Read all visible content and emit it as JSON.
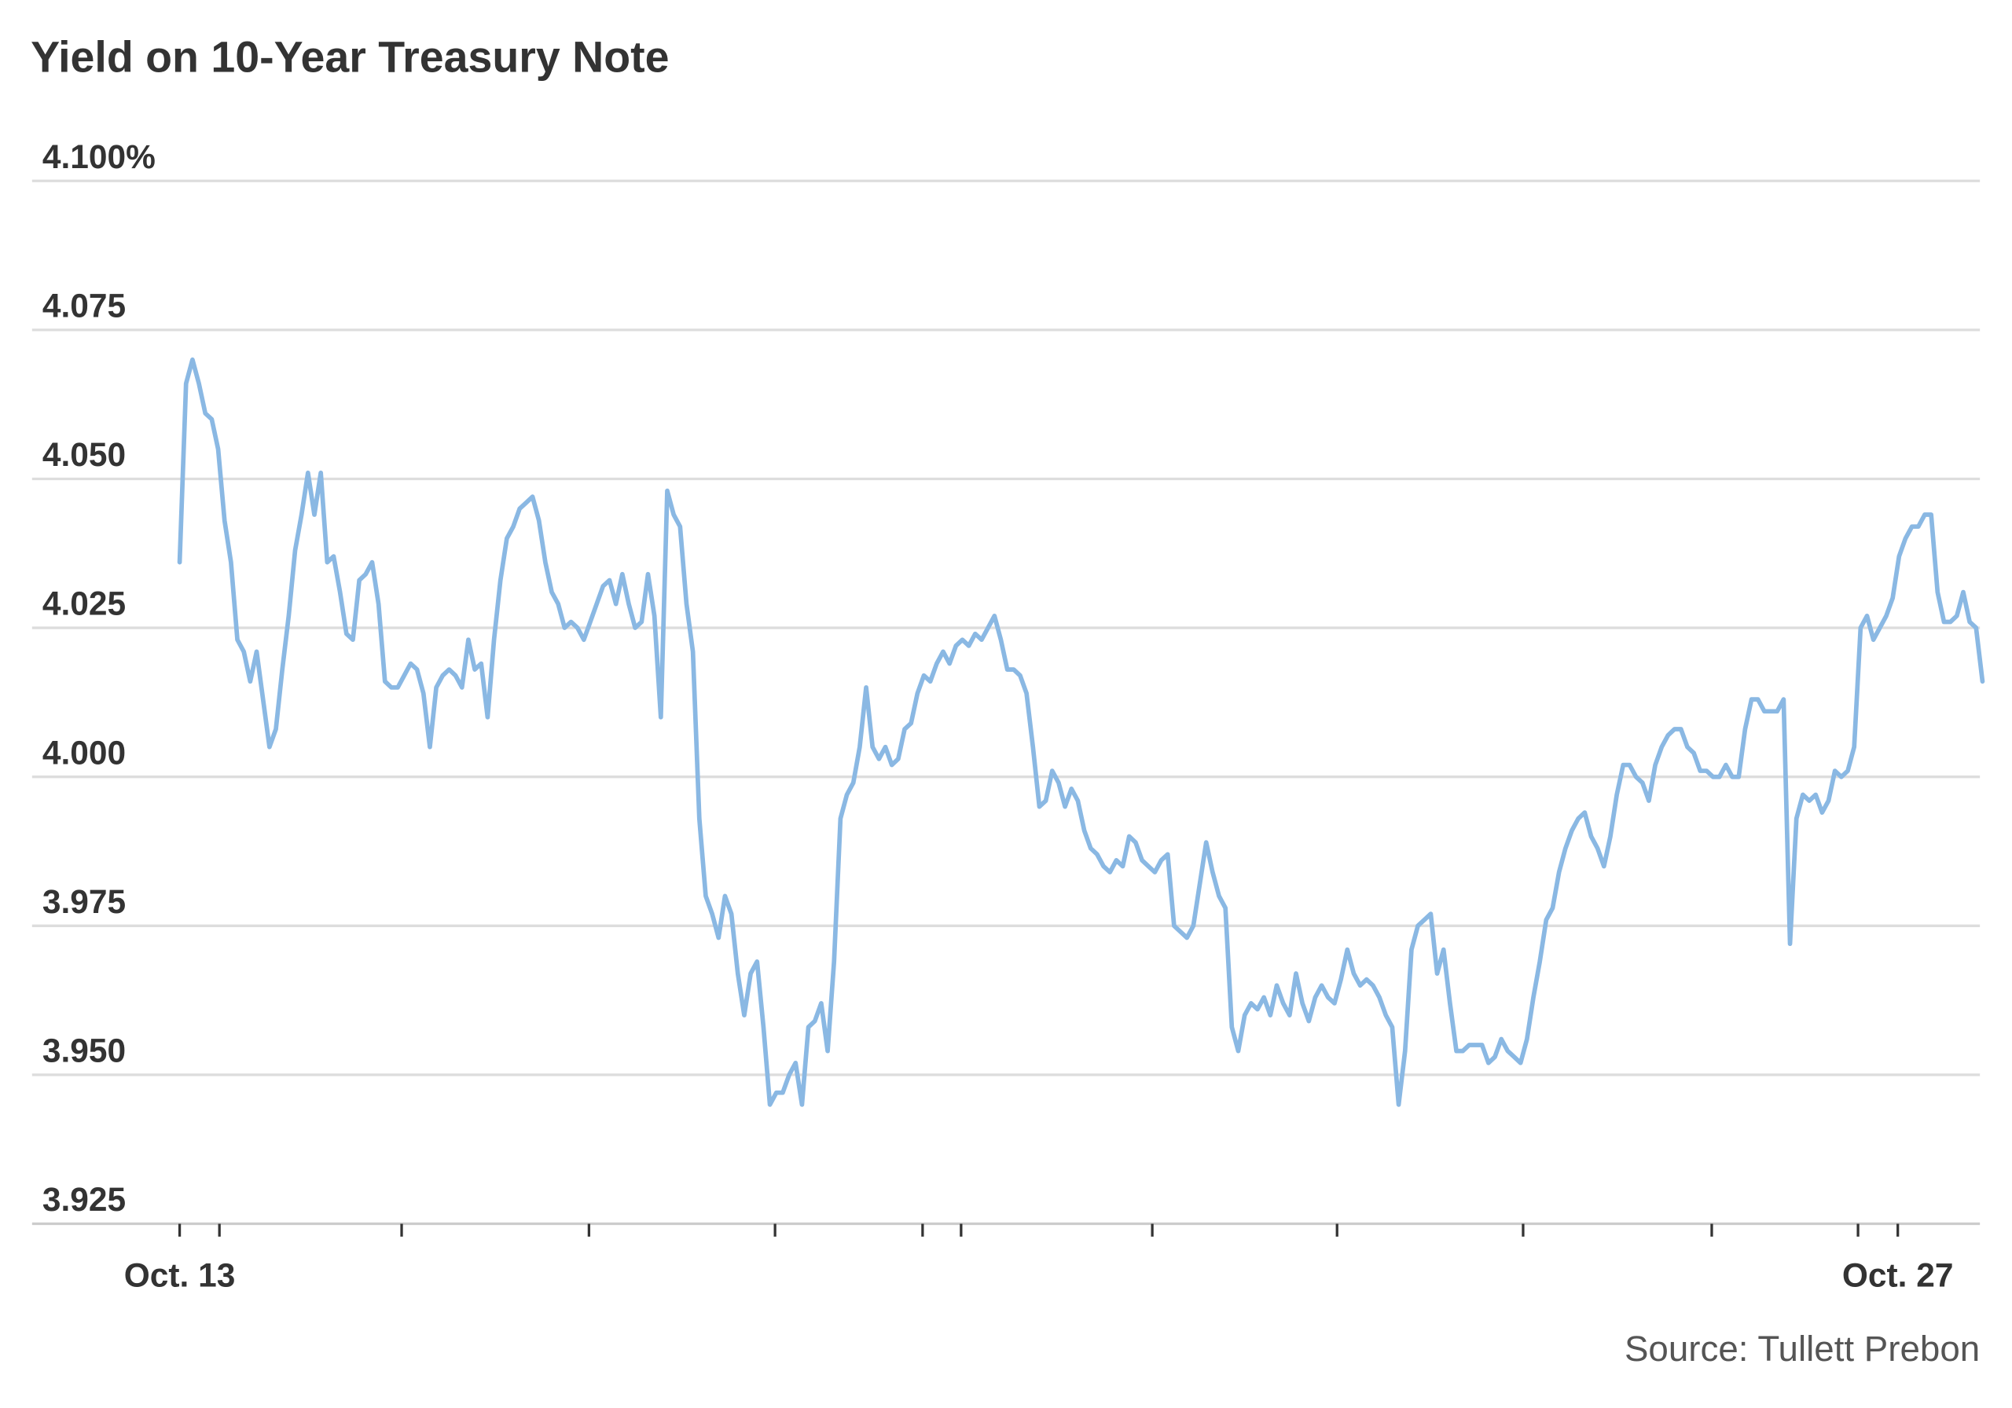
{
  "chart_data": {
    "type": "line",
    "title": "Yield on 10-Year Treasury Note",
    "source": "Source: Tullett Prebon",
    "xlabel": "",
    "ylabel": "",
    "ylim": [
      3.925,
      4.1
    ],
    "y_ticks": [
      {
        "value": 4.1,
        "label": "4.100%"
      },
      {
        "value": 4.075,
        "label": "4.075"
      },
      {
        "value": 4.05,
        "label": "4.050"
      },
      {
        "value": 4.025,
        "label": "4.025"
      },
      {
        "value": 4.0,
        "label": "4.000"
      },
      {
        "value": 3.975,
        "label": "3.975"
      },
      {
        "value": 3.95,
        "label": "3.950"
      },
      {
        "value": 3.925,
        "label": "3.925"
      }
    ],
    "x_tick_labels": [
      "Oct. 13",
      "Oct. 27"
    ],
    "grid": true,
    "legend": "none",
    "colors": {
      "line": "#8ab8e3",
      "text": "#333333",
      "grid": "#dddddd"
    },
    "series": [
      {
        "values": [
          4.036,
          4.066,
          4.07,
          4.066,
          4.061,
          4.06,
          4.055,
          4.043,
          4.036,
          4.023,
          4.021,
          4.016,
          4.021,
          4.013,
          4.005,
          4.008,
          4.018,
          4.027,
          4.038,
          4.044,
          4.051,
          4.044,
          4.051,
          4.036,
          4.037,
          4.031,
          4.024,
          4.023,
          4.033,
          4.034,
          4.036,
          4.029,
          4.016,
          4.015,
          4.015,
          4.017,
          4.019,
          4.018,
          4.014,
          4.005,
          4.015,
          4.017,
          4.018,
          4.017,
          4.015,
          4.023,
          4.018,
          4.019,
          4.01,
          4.023,
          4.033,
          4.04,
          4.042,
          4.045,
          4.046,
          4.047,
          4.043,
          4.036,
          4.031,
          4.029,
          4.025,
          4.026,
          4.025,
          4.023,
          4.026,
          4.029,
          4.032,
          4.033,
          4.029,
          4.034,
          4.029,
          4.025,
          4.026,
          4.034,
          4.027,
          4.01,
          4.048,
          4.044,
          4.042,
          4.029,
          4.021,
          3.993,
          3.98,
          3.977,
          3.973,
          3.98,
          3.977,
          3.967,
          3.96,
          3.967,
          3.969,
          3.958,
          3.945,
          3.947,
          3.947,
          3.95,
          3.952,
          3.945,
          3.958,
          3.959,
          3.962,
          3.954,
          3.969,
          3.993,
          3.997,
          3.999,
          4.005,
          4.015,
          4.005,
          4.003,
          4.005,
          4.002,
          4.003,
          4.008,
          4.009,
          4.014,
          4.017,
          4.016,
          4.019,
          4.021,
          4.019,
          4.022,
          4.023,
          4.022,
          4.024,
          4.023,
          4.025,
          4.027,
          4.023,
          4.018,
          4.018,
          4.017,
          4.014,
          4.005,
          3.995,
          3.996,
          4.001,
          3.999,
          3.995,
          3.998,
          3.996,
          3.991,
          3.988,
          3.987,
          3.985,
          3.984,
          3.986,
          3.985,
          3.99,
          3.989,
          3.986,
          3.985,
          3.984,
          3.986,
          3.987,
          3.975,
          3.974,
          3.973,
          3.975,
          3.982,
          3.989,
          3.984,
          3.98,
          3.978,
          3.958,
          3.954,
          3.96,
          3.962,
          3.961,
          3.963,
          3.96,
          3.965,
          3.962,
          3.96,
          3.967,
          3.962,
          3.959,
          3.963,
          3.965,
          3.963,
          3.962,
          3.966,
          3.971,
          3.967,
          3.965,
          3.966,
          3.965,
          3.963,
          3.96,
          3.958,
          3.945,
          3.954,
          3.971,
          3.975,
          3.976,
          3.977,
          3.967,
          3.971,
          3.962,
          3.954,
          3.954,
          3.955,
          3.955,
          3.955,
          3.952,
          3.953,
          3.956,
          3.954,
          3.953,
          3.952,
          3.956,
          3.963,
          3.969,
          3.976,
          3.978,
          3.984,
          3.988,
          3.991,
          3.993,
          3.994,
          3.99,
          3.988,
          3.985,
          3.99,
          3.997,
          4.002,
          4.002,
          4.0,
          3.999,
          3.996,
          4.002,
          4.005,
          4.007,
          4.008,
          4.008,
          4.005,
          4.004,
          4.001,
          4.001,
          4.0,
          4.0,
          4.002,
          4.0,
          4.0,
          4.008,
          4.013,
          4.013,
          4.011,
          4.011,
          4.011,
          4.013,
          3.972,
          3.993,
          3.997,
          3.996,
          3.997,
          3.994,
          3.996,
          4.001,
          4.0,
          4.001,
          4.005,
          4.025,
          4.027,
          4.023,
          4.025,
          4.027,
          4.03,
          4.037,
          4.04,
          4.042,
          4.042,
          4.044,
          4.044,
          4.031,
          4.026,
          4.026,
          4.027,
          4.031,
          4.026,
          4.025,
          4.016
        ]
      }
    ]
  }
}
